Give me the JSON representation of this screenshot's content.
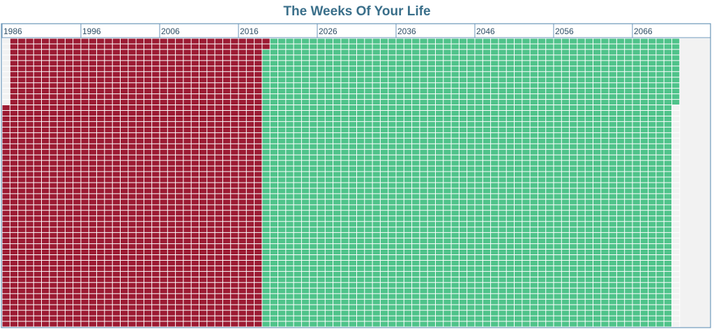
{
  "chart_data": {
    "type": "heatmap",
    "title": "The Weeks Of Your Life",
    "x_axis": {
      "unit": "year",
      "tick_labels": [
        "1986",
        "1996",
        "2006",
        "2016",
        "2026",
        "2036",
        "2046",
        "2056",
        "2066"
      ],
      "tick_values": [
        1986,
        1996,
        2006,
        2016,
        2026,
        2036,
        2046,
        2056,
        2066
      ],
      "range": [
        1986,
        2076
      ]
    },
    "y_axis": {
      "unit": "week of year",
      "range": [
        1,
        52
      ]
    },
    "birth": {
      "year": 1986,
      "week": 13
    },
    "current": {
      "year": 2019,
      "week": 2
    },
    "end": {
      "year": 2071,
      "week": 12
    },
    "series": [
      {
        "name": "",
        "color": "#9c1b33",
        "span": [
          "1986-W13",
          "2019-W02"
        ]
      },
      {
        "name": "",
        "color": "#4fc38a",
        "span": [
          "2019-W03",
          "2071-W12"
        ]
      }
    ],
    "colors": {
      "lived": "#9c1b33",
      "remaining": "#4fc38a",
      "grid_line": "#ffffff",
      "empty_area": "#f2f2f2",
      "frame": "#6b96b8",
      "title": "#3a6f8a"
    },
    "grid": true,
    "legend": "none"
  }
}
